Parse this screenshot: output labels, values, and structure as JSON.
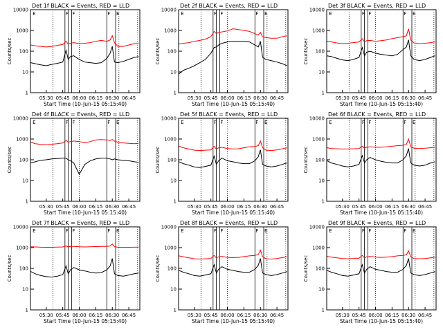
{
  "chart_data": {
    "type": "line",
    "layout": "3x3 grid",
    "yscale": "log",
    "ylim": [
      1,
      10000
    ],
    "ylabel": "Counts/sec",
    "xlabel": "Start Time (10-Jun-15 05:15:40)",
    "x_ticks": [
      "05:30",
      "05:45",
      "06:00",
      "06:15",
      "06:30",
      "06:45"
    ],
    "y_ticks": [
      "1",
      "10",
      "100",
      "1000",
      "10000"
    ],
    "xlim": [
      "05:15:40",
      "06:55"
    ],
    "colors": {
      "events": "#000000",
      "lld": "#ff0000",
      "markers": "#000000"
    },
    "series_legend": "BLACK = Events, RED = LLD",
    "solid_markers": [
      "05:47",
      "05:50",
      "05:53",
      "06:25",
      "06:33"
    ],
    "dotted_markers": [
      "05:36",
      "06:00",
      "06:36",
      "06:53"
    ],
    "marker_labels": [
      {
        "t": "05:17",
        "text": "E"
      },
      {
        "t": "05:47",
        "text": "F"
      },
      {
        "t": "05:53",
        "text": "F"
      },
      {
        "t": "06:25",
        "text": "F"
      },
      {
        "t": "06:33",
        "text": "E"
      }
    ],
    "x_times": [
      "05:16",
      "05:20",
      "05:25",
      "05:30",
      "05:35",
      "05:40",
      "05:45",
      "05:48",
      "05:50",
      "05:52",
      "05:55",
      "06:00",
      "06:05",
      "06:10",
      "06:15",
      "06:20",
      "06:25",
      "06:28",
      "06:30",
      "06:32",
      "06:35",
      "06:40",
      "06:45",
      "06:50",
      "06:54"
    ],
    "panels": [
      {
        "title": "Det 1f  BLACK = Events, RED = LLD",
        "events": [
          28,
          25,
          22,
          20,
          23,
          26,
          30,
          110,
          40,
          55,
          60,
          40,
          30,
          28,
          26,
          28,
          45,
          80,
          170,
          30,
          28,
          32,
          40,
          50,
          55
        ],
        "lld": [
          200,
          180,
          170,
          160,
          170,
          190,
          210,
          300,
          220,
          240,
          260,
          230,
          240,
          260,
          300,
          330,
          300,
          350,
          560,
          260,
          170,
          170,
          200,
          230,
          240
        ]
      },
      {
        "title": "Det 2f  BLACK = Events, RED = LLD",
        "events": [
          8,
          12,
          15,
          20,
          28,
          40,
          80,
          150,
          160,
          200,
          240,
          280,
          300,
          300,
          300,
          280,
          200,
          160,
          300,
          50,
          40,
          35,
          30,
          25,
          20
        ],
        "lld": [
          220,
          240,
          260,
          300,
          330,
          380,
          500,
          900,
          700,
          800,
          850,
          950,
          1200,
          1100,
          1000,
          900,
          700,
          600,
          800,
          500,
          450,
          420,
          420,
          500,
          550
        ]
      },
      {
        "title": "Det 3f  BLACK = Events, RED = LLD",
        "events": [
          60,
          55,
          45,
          38,
          35,
          40,
          50,
          150,
          60,
          90,
          100,
          80,
          70,
          65,
          60,
          70,
          120,
          160,
          350,
          60,
          40,
          35,
          40,
          50,
          60
        ],
        "lld": [
          300,
          280,
          250,
          230,
          240,
          260,
          280,
          400,
          280,
          320,
          330,
          300,
          320,
          350,
          400,
          450,
          500,
          550,
          1200,
          350,
          250,
          230,
          240,
          260,
          280
        ]
      },
      {
        "title": "Det 4f  BLACK = Events, RED = LLD",
        "events": [
          70,
          80,
          95,
          100,
          110,
          115,
          120,
          120,
          100,
          90,
          70,
          20,
          60,
          90,
          110,
          120,
          120,
          110,
          100,
          110,
          100,
          95,
          90,
          80,
          75
        ],
        "lld": [
          700,
          600,
          550,
          530,
          560,
          600,
          650,
          850,
          700,
          750,
          800,
          750,
          650,
          750,
          900,
          950,
          900,
          850,
          950,
          800,
          700,
          650,
          620,
          600,
          620
        ]
      },
      {
        "title": "Det 5f  BLACK = Events, RED = LLD",
        "events": [
          80,
          65,
          55,
          45,
          42,
          48,
          55,
          150,
          60,
          90,
          120,
          90,
          80,
          70,
          65,
          65,
          90,
          140,
          300,
          60,
          50,
          45,
          50,
          60,
          70
        ],
        "lld": [
          450,
          380,
          330,
          290,
          280,
          290,
          300,
          450,
          320,
          380,
          400,
          350,
          330,
          340,
          380,
          420,
          440,
          480,
          800,
          380,
          290,
          280,
          300,
          340,
          380
        ]
      },
      {
        "title": "Det 6f  BLACK = Events, RED = LLD",
        "events": [
          90,
          70,
          60,
          50,
          45,
          50,
          60,
          160,
          70,
          100,
          130,
          100,
          85,
          75,
          70,
          70,
          100,
          160,
          350,
          70,
          55,
          50,
          55,
          70,
          80
        ],
        "lld": [
          380,
          350,
          340,
          330,
          330,
          340,
          350,
          450,
          360,
          400,
          420,
          400,
          400,
          420,
          450,
          480,
          500,
          550,
          1000,
          420,
          360,
          350,
          360,
          380,
          400
        ]
      },
      {
        "title": "Det 7f  BLACK = Events, RED = LLD",
        "events": [
          70,
          55,
          45,
          40,
          38,
          42,
          50,
          130,
          55,
          85,
          110,
          85,
          75,
          65,
          60,
          62,
          85,
          130,
          300,
          55,
          45,
          42,
          48,
          55,
          60
        ],
        "lld": [
          1100,
          1080,
          1050,
          1040,
          1040,
          1060,
          1080,
          1200,
          1100,
          1150,
          1150,
          1100,
          1080,
          1100,
          1120,
          1140,
          1150,
          1200,
          1500,
          1100,
          1050,
          1040,
          1040,
          1050,
          1060
        ]
      },
      {
        "title": "Det 8f  BLACK = Events, RED = LLD",
        "events": [
          80,
          65,
          55,
          45,
          42,
          48,
          55,
          150,
          60,
          90,
          120,
          90,
          80,
          70,
          65,
          65,
          90,
          140,
          300,
          60,
          50,
          45,
          50,
          60,
          70
        ],
        "lld": [
          400,
          360,
          320,
          290,
          280,
          290,
          300,
          420,
          320,
          360,
          380,
          340,
          330,
          340,
          370,
          400,
          420,
          460,
          750,
          360,
          290,
          280,
          300,
          330,
          360
        ]
      },
      {
        "title": "Det 9f  BLACK = Events, RED = LLD",
        "events": [
          80,
          65,
          55,
          45,
          42,
          48,
          55,
          150,
          60,
          90,
          120,
          90,
          80,
          70,
          65,
          65,
          90,
          140,
          300,
          60,
          50,
          45,
          50,
          60,
          70
        ],
        "lld": [
          380,
          350,
          320,
          300,
          290,
          300,
          310,
          420,
          320,
          360,
          380,
          350,
          340,
          350,
          370,
          400,
          420,
          450,
          700,
          360,
          300,
          290,
          300,
          320,
          350
        ]
      }
    ]
  }
}
